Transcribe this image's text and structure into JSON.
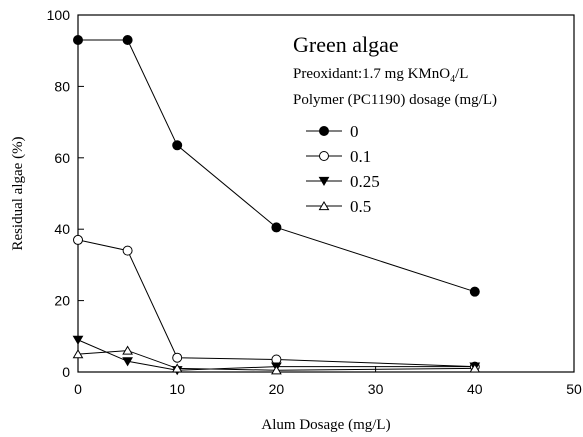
{
  "chart_data": {
    "type": "line",
    "title": "Green algae",
    "subtitle_prefix": "Preoxidant:1.7 mg KMnO",
    "subtitle_sub": "4",
    "subtitle_suffix": "/L",
    "legend_title": "Polymer (PC1190) dosage (mg/L)",
    "xlabel": "Alum Dosage (mg/L)",
    "ylabel": "Residual algae (%)",
    "xlim": [
      0,
      50
    ],
    "ylim": [
      0,
      100
    ],
    "xticks": [
      0,
      10,
      20,
      30,
      40,
      50
    ],
    "yticks": [
      0,
      20,
      40,
      60,
      80,
      100
    ],
    "grid": false,
    "legend_position": "top-right",
    "series": [
      {
        "name": "0",
        "marker": "filled-circle",
        "x": [
          0,
          5,
          10,
          20,
          40
        ],
        "y": [
          93,
          93,
          63.5,
          40.5,
          22.5
        ]
      },
      {
        "name": "0.1",
        "marker": "open-circle",
        "x": [
          0,
          5,
          10,
          20,
          40
        ],
        "y": [
          37,
          34,
          4,
          3.5,
          1.5
        ]
      },
      {
        "name": "0.25",
        "marker": "filled-triangle-down",
        "x": [
          0,
          5,
          10,
          20,
          40
        ],
        "y": [
          9,
          3,
          0.5,
          1.5,
          1.5
        ]
      },
      {
        "name": "0.5",
        "marker": "open-triangle-up",
        "x": [
          0,
          5,
          10,
          20,
          40
        ],
        "y": [
          5,
          6,
          1,
          0.5,
          1
        ]
      }
    ]
  }
}
